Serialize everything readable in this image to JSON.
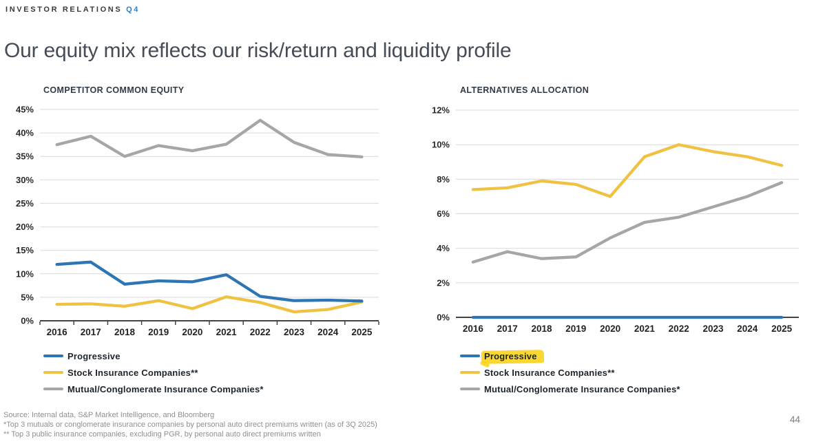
{
  "header": {
    "eyebrow": "INVESTOR RELATIONS",
    "eyebrow_highlight": "Q4"
  },
  "title": "Our equity mix reflects our risk/return and liquidity profile",
  "colors": {
    "progressive_blue": "#2e75b5",
    "stock_yellow": "#f0c242",
    "mutual_gray": "#a6a6a4",
    "legend_highlight_yellow": "#fbd41f",
    "gridline": "#d9d9d9",
    "axis": "#434343",
    "eyebrow_accent_blue": "#2f7dc3"
  },
  "chart_data": [
    {
      "type": "line",
      "title": "COMPETITOR COMMON EQUITY",
      "x": [
        "2016",
        "2017",
        "2018",
        "2019",
        "2020",
        "2021",
        "2022",
        "2023",
        "2024",
        "2025"
      ],
      "series": [
        {
          "name": "Progressive",
          "color": "#2e75b5",
          "values": [
            12.0,
            12.5,
            7.8,
            8.5,
            8.3,
            9.8,
            5.2,
            4.3,
            4.4,
            4.2
          ]
        },
        {
          "name": "Stock Insurance Companies**",
          "color": "#f0c242",
          "values": [
            3.5,
            3.6,
            3.1,
            4.3,
            2.6,
            5.1,
            3.9,
            1.9,
            2.4,
            4.0
          ]
        },
        {
          "name": "Mutual/Conglomerate Insurance Companies*",
          "color": "#a6a6a4",
          "values": [
            37.5,
            39.3,
            35.0,
            37.3,
            36.2,
            37.6,
            42.7,
            38.0,
            35.4,
            34.9
          ]
        }
      ],
      "ylim": [
        0,
        45
      ],
      "ytick_step": 5,
      "ytick_format": "percent",
      "grid": true,
      "x_axis_ticks": true,
      "legend_position": "bottom",
      "highlighted_legend": null
    },
    {
      "type": "line",
      "title": "ALTERNATIVES ALLOCATION",
      "x": [
        "2016",
        "2017",
        "2018",
        "2019",
        "2020",
        "2021",
        "2022",
        "2023",
        "2024",
        "2025"
      ],
      "series": [
        {
          "name": "Progressive",
          "color": "#2e75b5",
          "values": [
            0,
            0,
            0,
            0,
            0,
            0,
            0,
            0,
            0,
            0
          ]
        },
        {
          "name": "Stock Insurance Companies**",
          "color": "#f0c242",
          "values": [
            7.4,
            7.5,
            7.9,
            7.7,
            7.0,
            9.3,
            10.0,
            9.6,
            9.3,
            8.8
          ]
        },
        {
          "name": "Mutual/Conglomerate Insurance Companies*",
          "color": "#a6a6a4",
          "values": [
            3.2,
            3.8,
            3.4,
            3.5,
            4.6,
            5.5,
            5.8,
            6.4,
            7.0,
            7.8
          ]
        }
      ],
      "ylim": [
        0,
        12
      ],
      "ytick_step": 2,
      "ytick_format": "percent",
      "grid": true,
      "x_axis_ticks": false,
      "legend_position": "bottom",
      "highlighted_legend": "Progressive"
    }
  ],
  "footer": {
    "source": "Source: Internal data, S&P Market Intelligence, and Bloomberg",
    "note1": "*Top 3 mutuals or conglomerate insurance companies by personal auto direct premiums written (as of 3Q 2025)",
    "note2": "** Top 3 public insurance companies, excluding PGR, by personal auto direct premiums written",
    "page_number": "44"
  }
}
